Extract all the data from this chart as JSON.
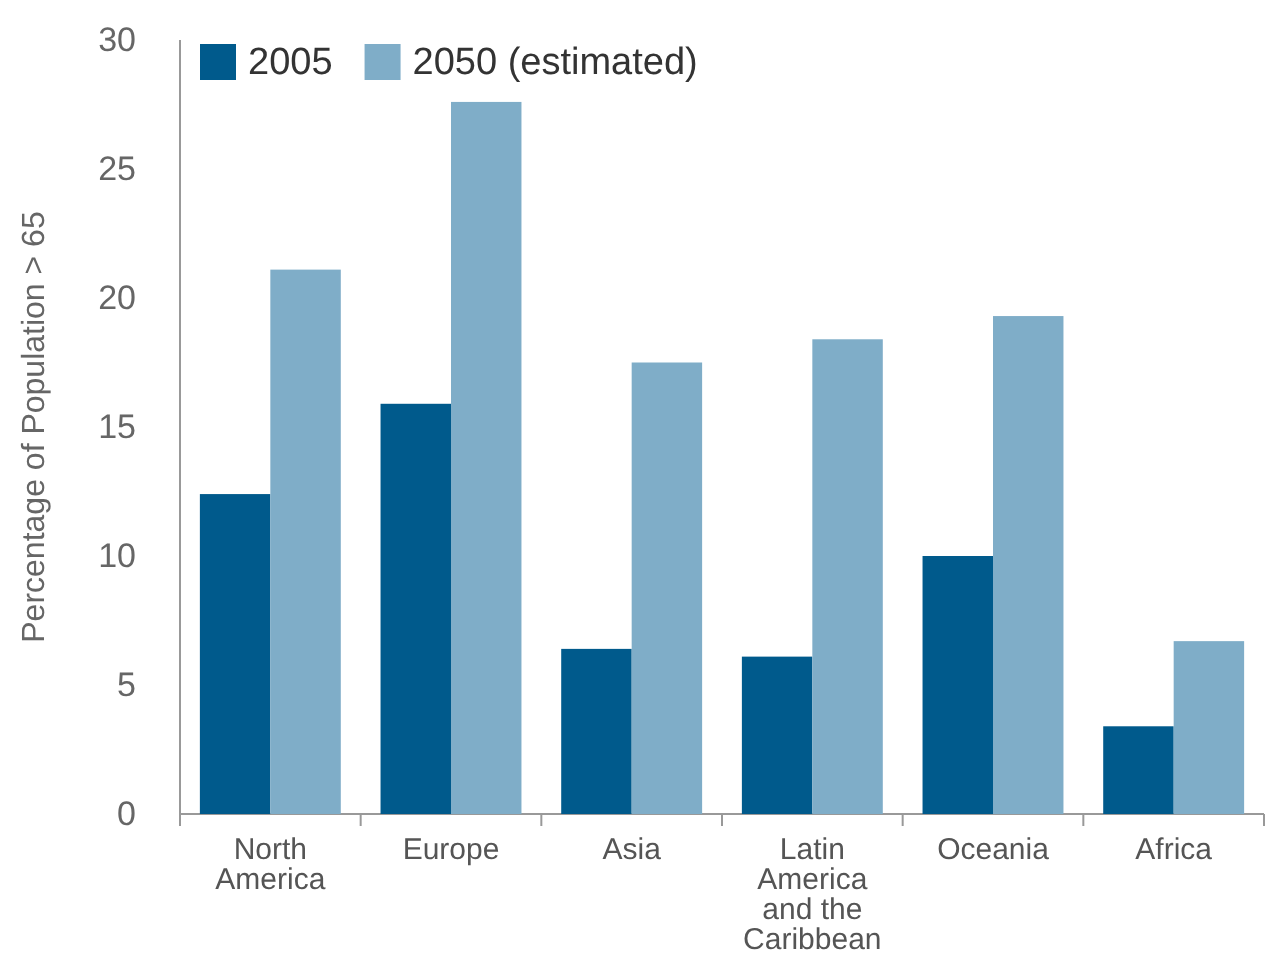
{
  "chart_data": {
    "type": "bar",
    "ylabel": "Percentage of Population > 65",
    "categories": [
      "North America",
      "Europe",
      "Asia",
      "Latin America and the Caribbean",
      "Oceania",
      "Africa"
    ],
    "series": [
      {
        "name": "2005",
        "color": "#005a8c",
        "values": [
          12.4,
          15.9,
          6.4,
          6.1,
          10.0,
          3.4
        ]
      },
      {
        "name": "2050 (estimated)",
        "color": "#7fadc8",
        "values": [
          21.1,
          27.6,
          17.5,
          18.4,
          19.3,
          6.7
        ]
      }
    ],
    "ylim": [
      0,
      30
    ],
    "yticks": [
      0,
      5,
      10,
      15,
      20,
      25,
      30
    ],
    "grid": false,
    "legend": "top left"
  }
}
